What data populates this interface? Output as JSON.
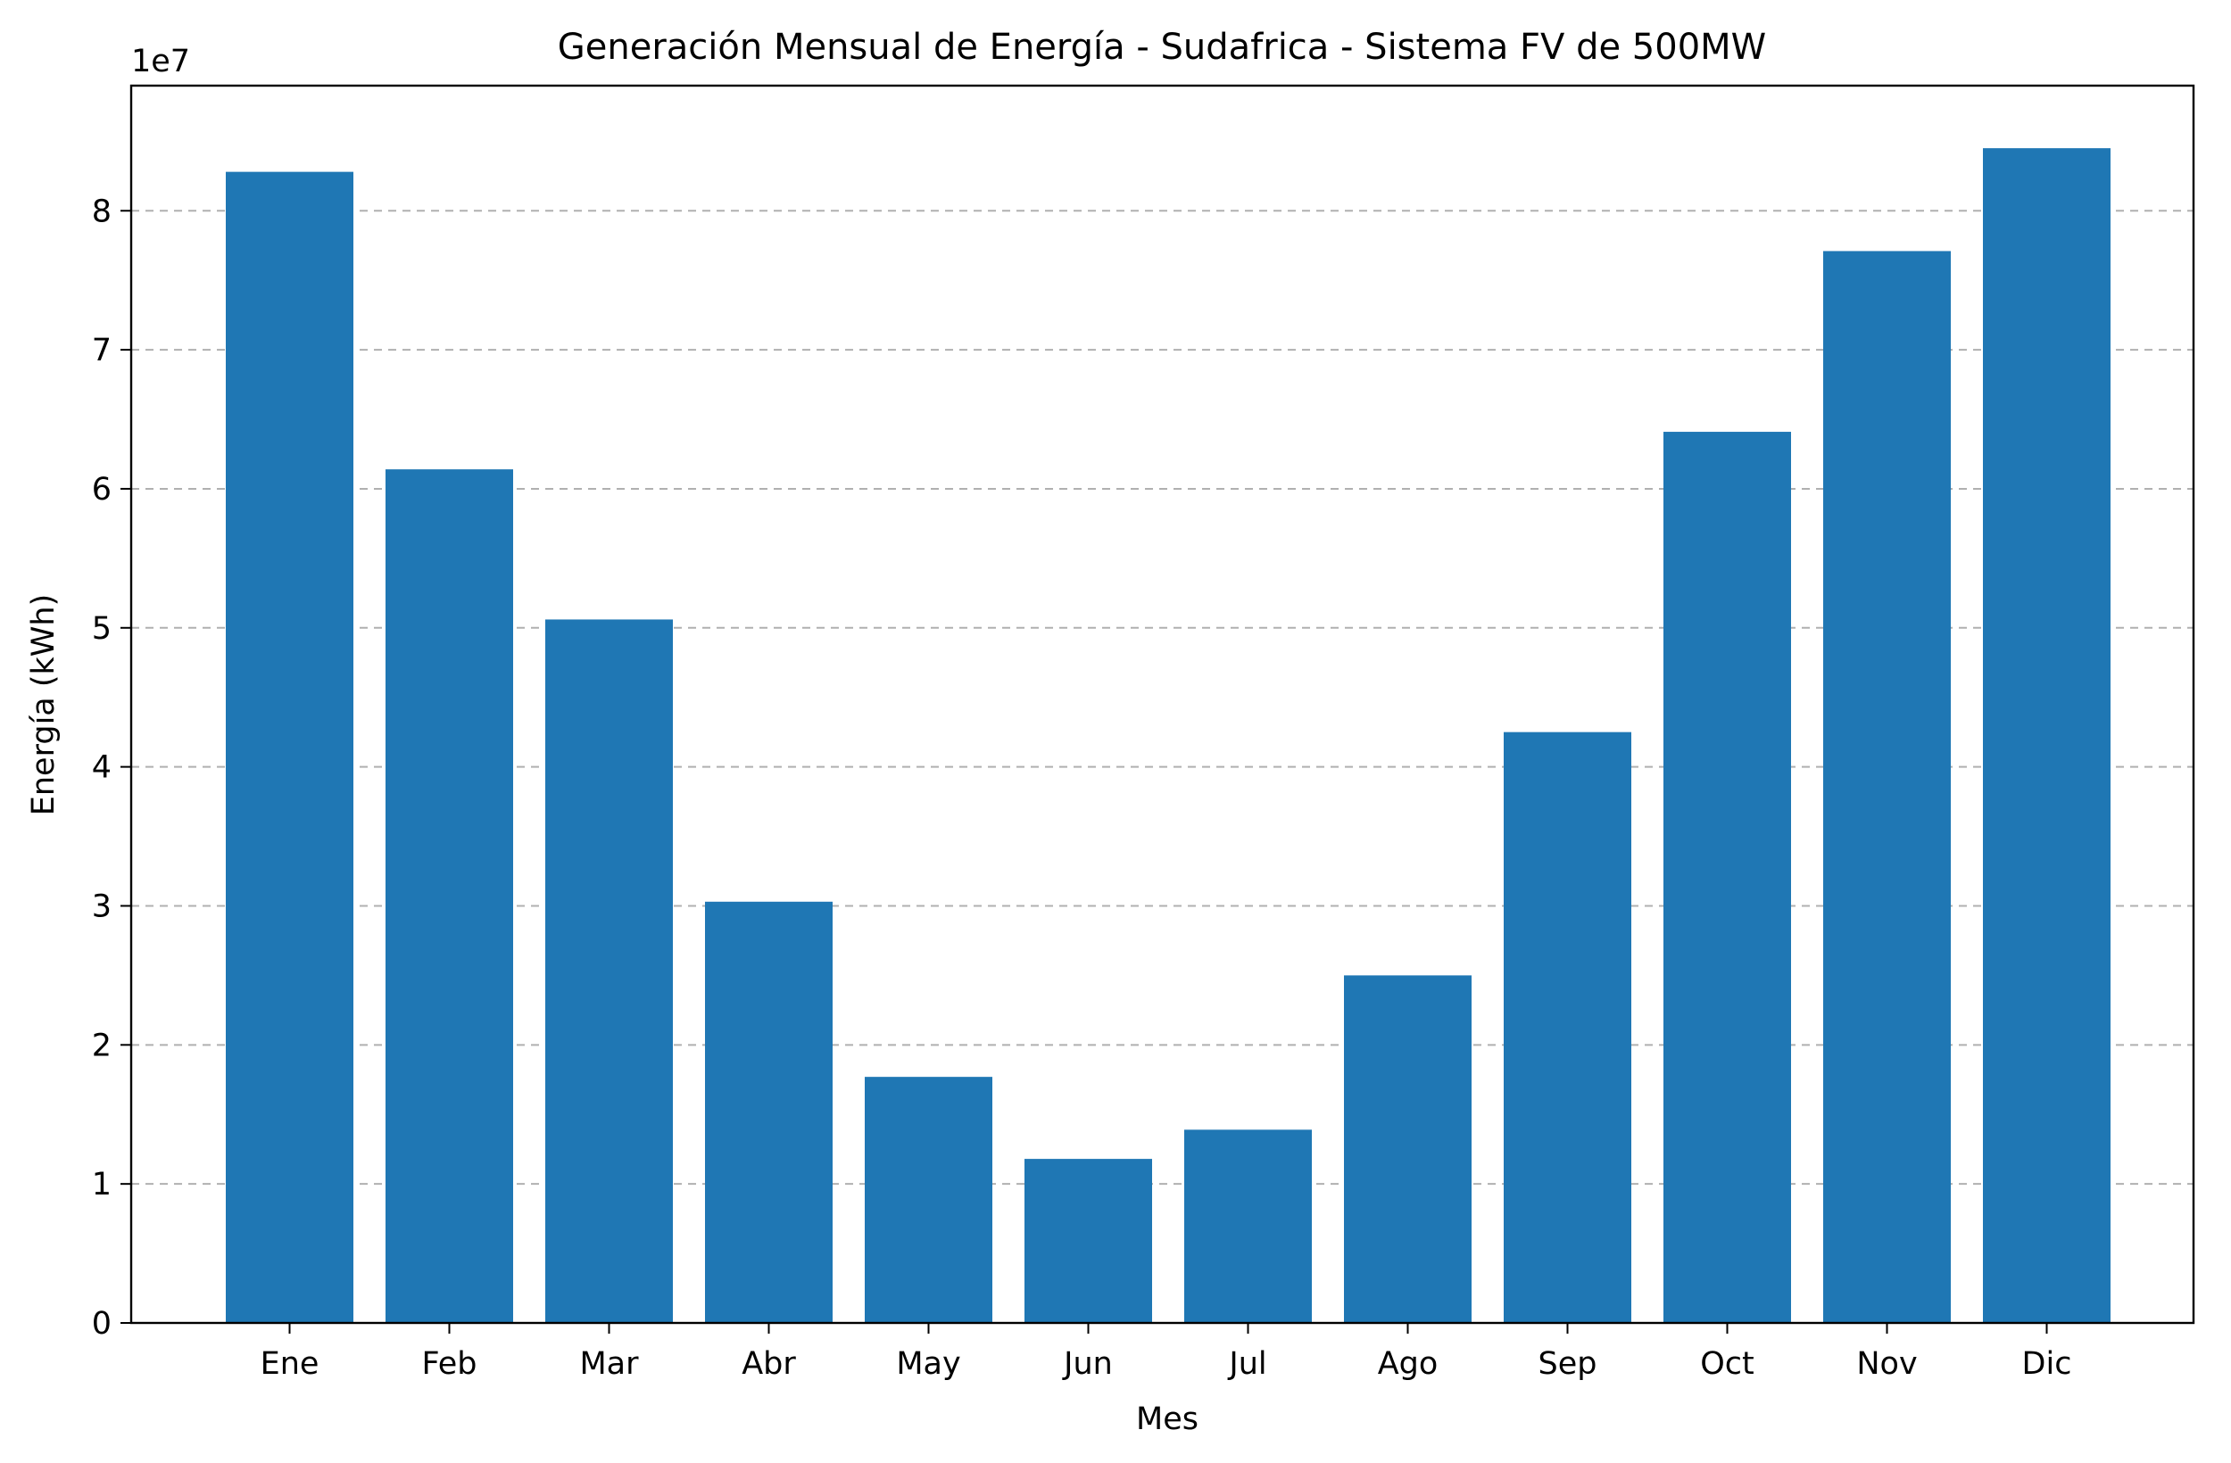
{
  "chart_data": {
    "type": "bar",
    "title": "Generación Mensual de Energía - Sudafrica - Sistema FV de 500MW",
    "xlabel": "Mes",
    "ylabel": "Energía (kWh)",
    "y_offset_label": "1e7",
    "y_scale": 10000000,
    "ylim": [
      0,
      89000000
    ],
    "yticks": [
      0,
      10000000,
      20000000,
      30000000,
      40000000,
      50000000,
      60000000,
      70000000,
      80000000
    ],
    "ytick_labels": [
      "0",
      "1",
      "2",
      "3",
      "4",
      "5",
      "6",
      "7",
      "8"
    ],
    "grid": "horizontal-dashed",
    "bar_color": "#1f77b4",
    "categories": [
      "Ene",
      "Feb",
      "Mar",
      "Abr",
      "May",
      "Jun",
      "Jul",
      "Ago",
      "Sep",
      "Oct",
      "Nov",
      "Dic"
    ],
    "values": [
      82800000,
      61400000,
      50600000,
      30300000,
      17700000,
      11800000,
      13900000,
      25000000,
      42500000,
      64100000,
      77100000,
      84500000
    ]
  }
}
